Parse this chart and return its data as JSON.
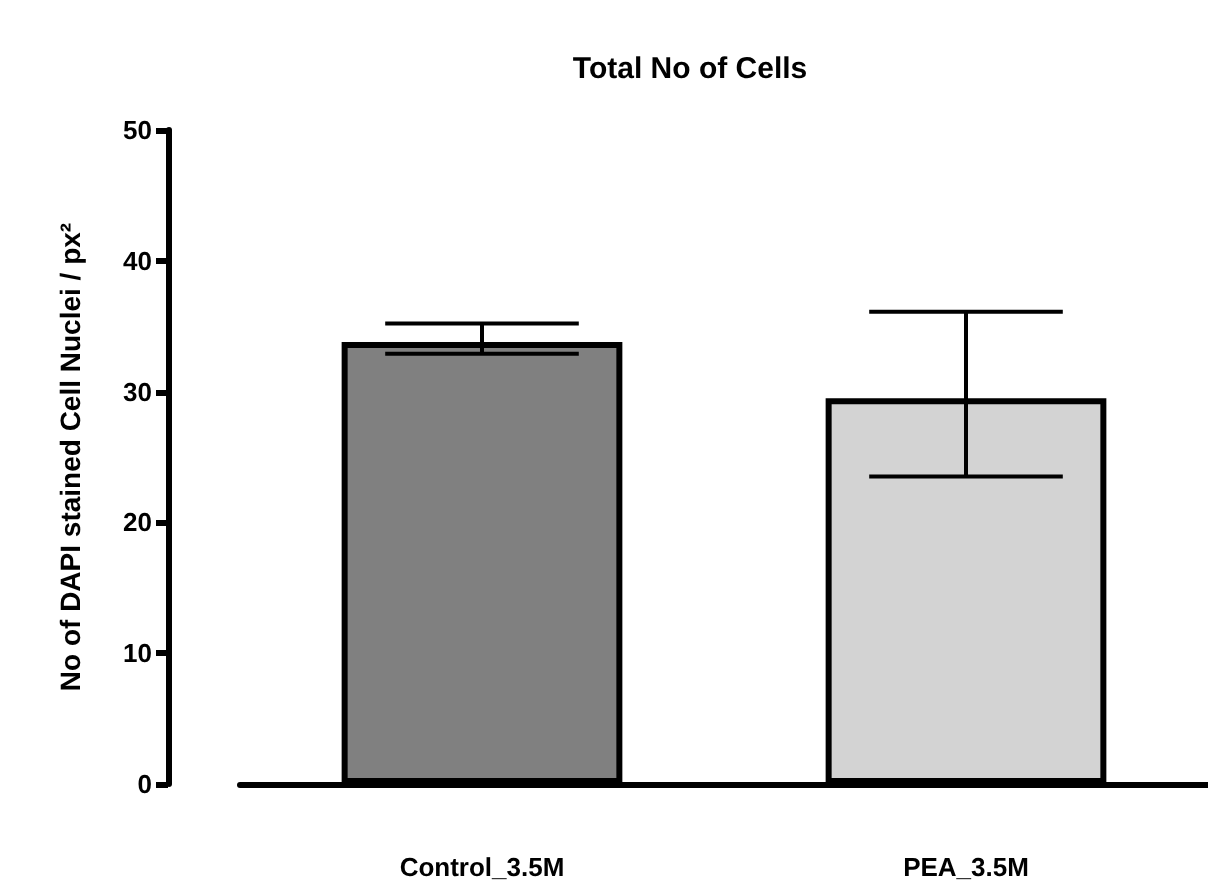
{
  "chart_data": {
    "type": "bar",
    "title": "Total No of Cells",
    "ylabel": "No of DAPI stained Cell Nuclei / px²",
    "categories": [
      "Control_3.5M",
      "PEA_3.5M"
    ],
    "values": [
      33.8,
      29.5
    ],
    "colors": [
      "#808080",
      "#d3d3d3"
    ],
    "errors": [
      [
        32.9,
        35.2
      ],
      [
        23.5,
        36.1
      ]
    ],
    "ylim": [
      0,
      50
    ],
    "yticks": [
      0,
      10,
      20,
      30,
      40,
      50
    ],
    "grid": false
  }
}
